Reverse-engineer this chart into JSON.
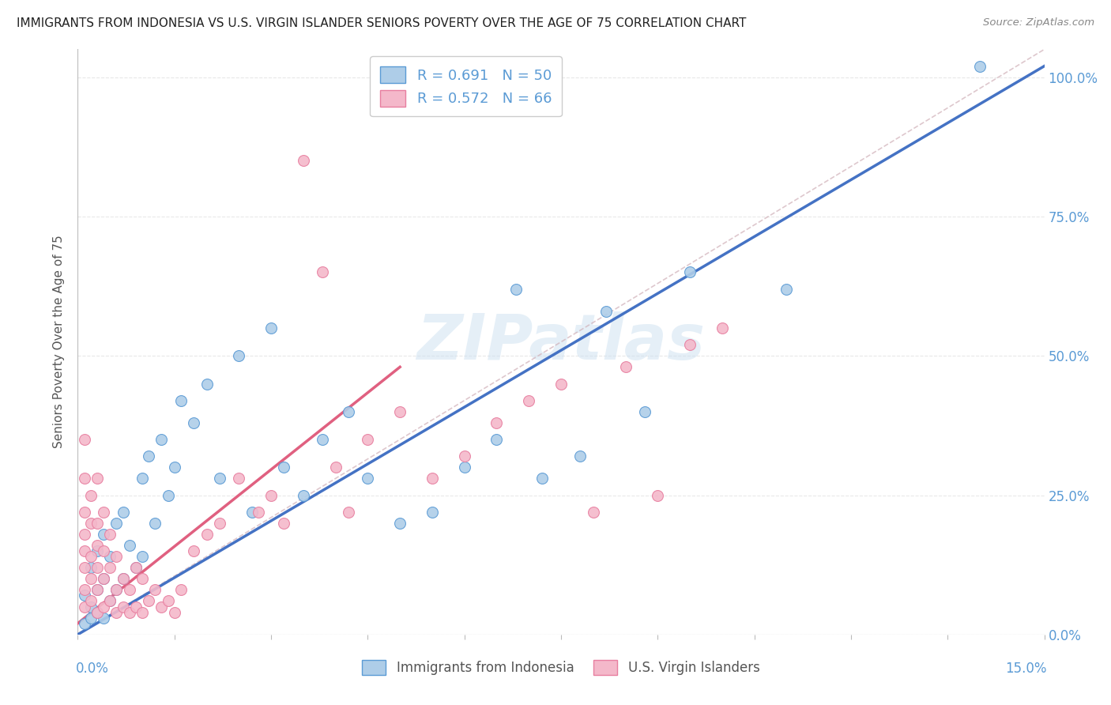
{
  "title": "IMMIGRANTS FROM INDONESIA VS U.S. VIRGIN ISLANDER SENIORS POVERTY OVER THE AGE OF 75 CORRELATION CHART",
  "source": "Source: ZipAtlas.com",
  "ylabel": "Seniors Poverty Over the Age of 75",
  "xmin": 0.0,
  "xmax": 0.15,
  "ymin": 0.0,
  "ymax": 1.05,
  "watermark": "ZIPatlas",
  "legend_r1": "R = 0.691",
  "legend_n1": "N = 50",
  "legend_r2": "R = 0.572",
  "legend_n2": "N = 66",
  "color_blue_fill": "#aecde8",
  "color_blue_edge": "#5b9bd5",
  "color_pink_fill": "#f4b8ca",
  "color_pink_edge": "#e87fa0",
  "color_line_blue": "#4472c4",
  "color_line_pink": "#e06080",
  "color_diagonal": "#d0b0b8",
  "color_right_axis": "#5b9bd5",
  "color_grid": "#e8e8e8",
  "bg_color": "#ffffff",
  "indonesia_x": [
    0.001,
    0.001,
    0.002,
    0.002,
    0.002,
    0.003,
    0.003,
    0.003,
    0.004,
    0.004,
    0.004,
    0.005,
    0.005,
    0.006,
    0.006,
    0.007,
    0.007,
    0.008,
    0.009,
    0.01,
    0.01,
    0.011,
    0.012,
    0.013,
    0.014,
    0.015,
    0.016,
    0.018,
    0.02,
    0.022,
    0.025,
    0.027,
    0.03,
    0.032,
    0.035,
    0.038,
    0.042,
    0.045,
    0.05,
    0.055,
    0.06,
    0.065,
    0.068,
    0.072,
    0.078,
    0.082,
    0.088,
    0.095,
    0.11,
    0.14
  ],
  "indonesia_y": [
    0.02,
    0.07,
    0.03,
    0.05,
    0.12,
    0.04,
    0.08,
    0.15,
    0.03,
    0.1,
    0.18,
    0.06,
    0.14,
    0.08,
    0.2,
    0.1,
    0.22,
    0.16,
    0.12,
    0.14,
    0.28,
    0.32,
    0.2,
    0.35,
    0.25,
    0.3,
    0.42,
    0.38,
    0.45,
    0.28,
    0.5,
    0.22,
    0.55,
    0.3,
    0.25,
    0.35,
    0.4,
    0.28,
    0.2,
    0.22,
    0.3,
    0.35,
    0.62,
    0.28,
    0.32,
    0.58,
    0.4,
    0.65,
    0.62,
    1.02
  ],
  "virgin_x": [
    0.001,
    0.001,
    0.001,
    0.001,
    0.001,
    0.001,
    0.001,
    0.001,
    0.002,
    0.002,
    0.002,
    0.002,
    0.002,
    0.003,
    0.003,
    0.003,
    0.003,
    0.003,
    0.003,
    0.004,
    0.004,
    0.004,
    0.004,
    0.005,
    0.005,
    0.005,
    0.006,
    0.006,
    0.006,
    0.007,
    0.007,
    0.008,
    0.008,
    0.009,
    0.009,
    0.01,
    0.01,
    0.011,
    0.012,
    0.013,
    0.014,
    0.015,
    0.016,
    0.018,
    0.02,
    0.022,
    0.025,
    0.028,
    0.03,
    0.032,
    0.035,
    0.038,
    0.04,
    0.042,
    0.045,
    0.05,
    0.055,
    0.06,
    0.065,
    0.07,
    0.075,
    0.08,
    0.085,
    0.09,
    0.095,
    0.1
  ],
  "virgin_y": [
    0.05,
    0.08,
    0.12,
    0.15,
    0.18,
    0.22,
    0.28,
    0.35,
    0.06,
    0.1,
    0.14,
    0.2,
    0.25,
    0.04,
    0.08,
    0.12,
    0.16,
    0.2,
    0.28,
    0.05,
    0.1,
    0.15,
    0.22,
    0.06,
    0.12,
    0.18,
    0.04,
    0.08,
    0.14,
    0.05,
    0.1,
    0.04,
    0.08,
    0.05,
    0.12,
    0.04,
    0.1,
    0.06,
    0.08,
    0.05,
    0.06,
    0.04,
    0.08,
    0.15,
    0.18,
    0.2,
    0.28,
    0.22,
    0.25,
    0.2,
    0.85,
    0.65,
    0.3,
    0.22,
    0.35,
    0.4,
    0.28,
    0.32,
    0.38,
    0.42,
    0.45,
    0.22,
    0.48,
    0.25,
    0.52,
    0.55
  ],
  "blue_line_x0": 0.0,
  "blue_line_y0": 0.0,
  "blue_line_x1": 0.15,
  "blue_line_y1": 1.02,
  "pink_line_x0": 0.0,
  "pink_line_y0": 0.02,
  "pink_line_x1": 0.05,
  "pink_line_y1": 0.48
}
